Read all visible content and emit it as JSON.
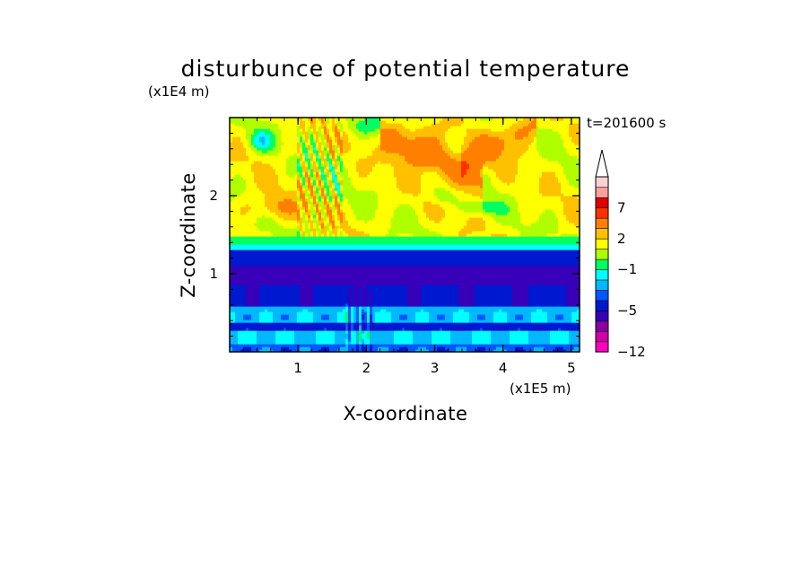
{
  "chart_data": {
    "type": "heatmap",
    "title": "disturbunce of potential temperature",
    "xlabel": "X-coordinate",
    "ylabel": "Z-coordinate",
    "x_unit": "(x1E5 m)",
    "y_unit": "(x1E4 m)",
    "time_label": "t=201600 s",
    "xlim": [
      0,
      5.12
    ],
    "ylim": [
      0,
      3.0
    ],
    "x_ticks": [
      1,
      2,
      3,
      4,
      5
    ],
    "x_tick_labels": [
      "1",
      "2",
      "3",
      "4",
      "5"
    ],
    "y_ticks": [
      1,
      2
    ],
    "y_tick_labels": [
      "1",
      "2"
    ],
    "colorbar": {
      "levels": [
        -12,
        -11,
        -9,
        -7,
        -5,
        -4,
        -3,
        -2,
        -1,
        0,
        1,
        2,
        3,
        5,
        7,
        9,
        11
      ],
      "colors": [
        "#ff00c0",
        "#d000a8",
        "#8a00a0",
        "#3800b8",
        "#0018d0",
        "#0058ff",
        "#00b8ff",
        "#00ffff",
        "#00ff60",
        "#b0ff00",
        "#ffff00",
        "#ffc000",
        "#ff8000",
        "#ff3000",
        "#e00000",
        "#ffa0a0",
        "#ffd0d0"
      ],
      "tick_values": [
        7,
        2,
        -1,
        -5,
        -12
      ],
      "tick_labels": [
        "7",
        "2",
        "−1",
        "−5",
        "−12"
      ],
      "extend": "max"
    },
    "features": [
      {
        "kind": "layer",
        "z_range": [
          0.0,
          0.3
        ],
        "value": -2.5
      },
      {
        "kind": "layer",
        "z_range": [
          0.3,
          0.6
        ],
        "value": -1.8
      },
      {
        "kind": "layer",
        "z_range": [
          0.6,
          0.95
        ],
        "value": -4.5
      },
      {
        "kind": "layer",
        "z_range": [
          0.85,
          1.15
        ],
        "value": -6.5
      },
      {
        "kind": "layer",
        "z_range": [
          1.15,
          1.3
        ],
        "value": -4.2
      },
      {
        "kind": "layer",
        "z_range": [
          1.3,
          1.5
        ],
        "value": -0.5
      },
      {
        "kind": "layer",
        "z_range": [
          1.5,
          3.0
        ],
        "value": 1.5
      },
      {
        "kind": "warm_band",
        "from": [
          2.3,
          2.8
        ],
        "to": [
          3.6,
          2.2
        ],
        "value": 5
      },
      {
        "kind": "warm_band",
        "from": [
          3.6,
          2.5
        ],
        "to": [
          4.4,
          2.9
        ],
        "value": 4
      },
      {
        "kind": "gravity_wave_streaks",
        "x_range": [
          1.0,
          1.6
        ],
        "z_range": [
          1.4,
          3.0
        ]
      }
    ]
  }
}
